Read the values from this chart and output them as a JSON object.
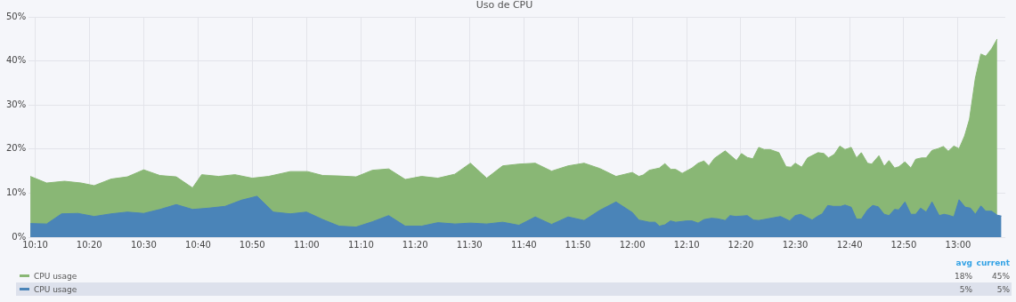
{
  "chart_data": {
    "type": "area",
    "title": "Uso de CPU",
    "legend": "bottom",
    "grid": true,
    "marker": "none",
    "xlim": [
      10.147,
      13.145
    ],
    "xticks": [
      {
        "value": 10.167,
        "label": "10:10"
      },
      {
        "value": 10.333,
        "label": "10:20"
      },
      {
        "value": 10.5,
        "label": "10:30"
      },
      {
        "value": 10.667,
        "label": "10:40"
      },
      {
        "value": 10.833,
        "label": "10:50"
      },
      {
        "value": 11,
        "label": "11:00"
      },
      {
        "value": 11.167,
        "label": "11:10"
      },
      {
        "value": 11.333,
        "label": "11:20"
      },
      {
        "value": 11.5,
        "label": "11:30"
      },
      {
        "value": 11.667,
        "label": "11:40"
      },
      {
        "value": 11.833,
        "label": "11:50"
      },
      {
        "value": 12,
        "label": "12:00"
      },
      {
        "value": 12.167,
        "label": "12:10"
      },
      {
        "value": 12.333,
        "label": "12:20"
      },
      {
        "value": 12.5,
        "label": "12:30"
      },
      {
        "value": 12.667,
        "label": "12:40"
      },
      {
        "value": 12.833,
        "label": "12:50"
      },
      {
        "value": 13,
        "label": "13:00"
      }
    ],
    "ylim": [
      0,
      50
    ],
    "yticks": [
      {
        "value": 0,
        "label": "0%"
      },
      {
        "value": 10,
        "label": "10%"
      },
      {
        "value": 20,
        "label": "20%"
      },
      {
        "value": 30,
        "label": "30%"
      },
      {
        "value": 40,
        "label": "40%"
      },
      {
        "value": 50,
        "label": "50%"
      }
    ],
    "annotations": [
      "avg",
      "current",
      "18%",
      "45%",
      "5%",
      "5%"
    ],
    "series": [
      {
        "name": "CPU usage",
        "color": "#89b775",
        "x": [
          10.152,
          10.202,
          10.257,
          10.308,
          10.348,
          10.4,
          10.45,
          10.5,
          10.55,
          10.6,
          10.65,
          10.678,
          10.73,
          10.78,
          10.833,
          10.883,
          10.95,
          11.003,
          11.05,
          11.1,
          11.152,
          11.202,
          11.252,
          11.303,
          11.353,
          11.403,
          11.455,
          11.503,
          11.553,
          11.602,
          11.652,
          11.702,
          11.752,
          11.803,
          11.852,
          11.9,
          11.95,
          12.0,
          12.02,
          12.033,
          12.052,
          12.083,
          12.1,
          12.118,
          12.133,
          12.153,
          12.183,
          12.202,
          12.22,
          12.235,
          12.252,
          12.285,
          12.32,
          12.335,
          12.353,
          12.37,
          12.388,
          12.405,
          12.423,
          12.45,
          12.472,
          12.487,
          12.5,
          12.52,
          12.538,
          12.57,
          12.588,
          12.602,
          12.62,
          12.637,
          12.653,
          12.672,
          12.688,
          12.703,
          12.722,
          12.735,
          12.757,
          12.773,
          12.788,
          12.805,
          12.818,
          12.837,
          12.855,
          12.87,
          12.888,
          12.902,
          12.92,
          12.938,
          12.955,
          12.97,
          12.987,
          13.003,
          13.02,
          13.035,
          13.053,
          13.07,
          13.085,
          13.103,
          13.12
        ],
        "values": [
          13.8,
          12.3,
          12.7,
          12.3,
          11.7,
          13.2,
          13.7,
          15.3,
          14.0,
          13.7,
          11.2,
          14.2,
          13.8,
          14.2,
          13.4,
          13.8,
          14.9,
          14.9,
          14.0,
          13.9,
          13.7,
          15.2,
          15.5,
          13.1,
          13.8,
          13.4,
          14.3,
          16.8,
          13.4,
          16.2,
          16.6,
          16.8,
          15.0,
          16.2,
          16.8,
          15.6,
          13.8,
          14.7,
          13.8,
          14.1,
          15.2,
          15.7,
          16.7,
          15.4,
          15.4,
          14.5,
          15.7,
          16.8,
          17.3,
          16.2,
          17.9,
          19.6,
          17.4,
          19.0,
          18.1,
          17.8,
          20.4,
          19.9,
          19.9,
          19.2,
          16.0,
          15.9,
          16.8,
          15.9,
          18.0,
          19.2,
          19.0,
          18.0,
          18.8,
          20.7,
          19.9,
          20.4,
          18.0,
          19.2,
          16.8,
          16.6,
          18.5,
          16.1,
          17.4,
          15.7,
          16.0,
          17.1,
          15.7,
          17.7,
          18.0,
          18.0,
          19.7,
          20.1,
          20.6,
          19.5,
          20.7,
          20.1,
          23.0,
          26.8,
          36.1,
          41.6,
          41.1,
          42.8,
          45
        ]
      },
      {
        "name": "CPU usage",
        "color": "#4a84b8",
        "x": [
          10.152,
          10.202,
          10.248,
          10.298,
          10.348,
          10.4,
          10.45,
          10.5,
          10.55,
          10.6,
          10.65,
          10.7,
          10.75,
          10.8,
          10.848,
          10.898,
          10.95,
          11.0,
          11.05,
          11.1,
          11.152,
          11.202,
          11.252,
          11.303,
          11.353,
          11.403,
          11.455,
          11.503,
          11.553,
          11.602,
          11.652,
          11.702,
          11.752,
          11.803,
          11.852,
          11.9,
          11.95,
          12.0,
          12.02,
          12.052,
          12.07,
          12.083,
          12.1,
          12.117,
          12.133,
          12.167,
          12.183,
          12.202,
          12.22,
          12.243,
          12.26,
          12.285,
          12.3,
          12.317,
          12.337,
          12.353,
          12.372,
          12.388,
          12.455,
          12.483,
          12.5,
          12.517,
          12.552,
          12.57,
          12.583,
          12.6,
          12.617,
          12.64,
          12.653,
          12.672,
          12.688,
          12.703,
          12.722,
          12.738,
          12.755,
          12.773,
          12.788,
          12.805,
          12.818,
          12.837,
          12.855,
          12.87,
          12.885,
          12.902,
          12.92,
          12.942,
          12.957,
          12.97,
          12.987,
          13.003,
          13.022,
          13.038,
          13.053,
          13.07,
          13.085,
          13.103,
          13.12,
          13.133
        ],
        "values": [
          3.1,
          3.0,
          5.3,
          5.4,
          4.7,
          5.3,
          5.7,
          5.4,
          6.3,
          7.4,
          6.3,
          6.6,
          7.0,
          8.4,
          9.3,
          5.7,
          5.3,
          5.7,
          4.0,
          2.5,
          2.3,
          3.5,
          4.9,
          2.5,
          2.5,
          3.3,
          3.0,
          3.2,
          3.0,
          3.4,
          2.7,
          4.6,
          2.9,
          4.6,
          3.8,
          6.1,
          8.0,
          5.6,
          3.9,
          3.4,
          3.4,
          2.5,
          2.8,
          3.7,
          3.4,
          3.7,
          3.7,
          3.2,
          4.0,
          4.3,
          4.2,
          3.8,
          4.9,
          4.7,
          4.8,
          4.9,
          3.9,
          3.8,
          4.7,
          3.7,
          4.9,
          5.2,
          3.9,
          4.8,
          5.3,
          7.2,
          7.0,
          7.0,
          7.3,
          6.8,
          4.1,
          4.1,
          6.2,
          7.2,
          6.9,
          5.2,
          4.9,
          6.3,
          6.2,
          8.0,
          5.2,
          5.2,
          6.6,
          5.7,
          8.0,
          4.9,
          5.2,
          5.0,
          4.6,
          8.5,
          6.8,
          6.6,
          5.2,
          7.1,
          5.9,
          5.9,
          5.0,
          4.8
        ]
      }
    ]
  }
}
